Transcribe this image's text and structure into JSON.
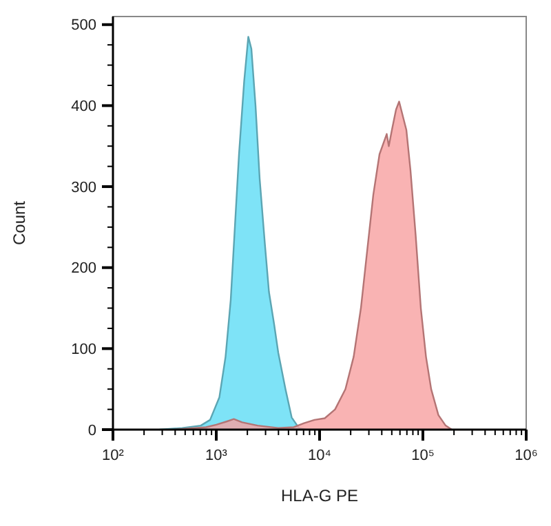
{
  "chart_data": {
    "type": "area",
    "xlabel": "HLA-G PE",
    "ylabel": "Count",
    "log": "x",
    "grid": false,
    "xlim": [
      100,
      1000000
    ],
    "xticks": [
      {
        "value": 100,
        "label": "10²"
      },
      {
        "value": 200,
        "label": null
      },
      {
        "value": 300,
        "label": null
      },
      {
        "value": 400,
        "label": null
      },
      {
        "value": 500,
        "label": null
      },
      {
        "value": 600,
        "label": null
      },
      {
        "value": 700,
        "label": null
      },
      {
        "value": 800,
        "label": null
      },
      {
        "value": 900,
        "label": null
      },
      {
        "value": 1000,
        "label": "10³"
      },
      {
        "value": 2000,
        "label": null
      },
      {
        "value": 3000,
        "label": null
      },
      {
        "value": 4000,
        "label": null
      },
      {
        "value": 5000,
        "label": null
      },
      {
        "value": 6000,
        "label": null
      },
      {
        "value": 7000,
        "label": null
      },
      {
        "value": 8000,
        "label": null
      },
      {
        "value": 9000,
        "label": null
      },
      {
        "value": 10000,
        "label": "10⁴"
      },
      {
        "value": 20000,
        "label": null
      },
      {
        "value": 30000,
        "label": null
      },
      {
        "value": 40000,
        "label": null
      },
      {
        "value": 50000,
        "label": null
      },
      {
        "value": 60000,
        "label": null
      },
      {
        "value": 70000,
        "label": null
      },
      {
        "value": 80000,
        "label": null
      },
      {
        "value": 90000,
        "label": null
      },
      {
        "value": 100000,
        "label": "10⁵"
      },
      {
        "value": 200000,
        "label": null
      },
      {
        "value": 300000,
        "label": null
      },
      {
        "value": 400000,
        "label": null
      },
      {
        "value": 500000,
        "label": null
      },
      {
        "value": 600000,
        "label": null
      },
      {
        "value": 700000,
        "label": null
      },
      {
        "value": 800000,
        "label": null
      },
      {
        "value": 900000,
        "label": null
      },
      {
        "value": 1000000,
        "label": "10⁶"
      }
    ],
    "ylim": [
      0,
      510
    ],
    "yticks": [
      0,
      {
        "value": 25,
        "label": null
      },
      {
        "value": 50,
        "label": null
      },
      {
        "value": 75,
        "label": null
      },
      100,
      {
        "value": 125,
        "label": null
      },
      {
        "value": 150,
        "label": null
      },
      {
        "value": 175,
        "label": null
      },
      200,
      {
        "value": 225,
        "label": null
      },
      {
        "value": 250,
        "label": null
      },
      {
        "value": 275,
        "label": null
      },
      300,
      {
        "value": 325,
        "label": null
      },
      {
        "value": 350,
        "label": null
      },
      {
        "value": 375,
        "label": null
      },
      400,
      {
        "value": 425,
        "label": null
      },
      {
        "value": 450,
        "label": null
      },
      {
        "value": 475,
        "label": null
      },
      500
    ],
    "series": [
      {
        "color": "#7ee3f7",
        "x": [
          282,
          468,
          708,
          871,
          1072,
          1230,
          1380,
          1514,
          1660,
          1862,
          2042,
          2188,
          2399,
          2630,
          2951,
          3236,
          3631,
          3981,
          4677,
          5370,
          6310,
          7413
        ],
        "values": [
          0,
          2,
          5,
          12,
          40,
          90,
          160,
          250,
          340,
          430,
          485,
          470,
          400,
          310,
          230,
          170,
          130,
          95,
          50,
          15,
          2,
          0
        ]
      },
      {
        "color": "#f8a0a0",
        "x": [
          398,
          794,
          1000,
          1259,
          1479,
          1778,
          2512,
          3981,
          5623,
          7079,
          8913,
          11220,
          14125,
          17783,
          21380,
          25119,
          28840,
          33113,
          38019,
          44668,
          46774,
          50119,
          54954,
          58884,
          63096,
          69183,
          75858,
          85114,
          95499,
          107152,
          120226,
          141254,
          165959,
          190546
        ],
        "values": [
          0,
          3,
          6,
          10,
          13,
          9,
          5,
          2,
          3,
          8,
          12,
          14,
          25,
          50,
          90,
          150,
          220,
          290,
          340,
          365,
          350,
          370,
          395,
          405,
          390,
          370,
          320,
          240,
          150,
          90,
          50,
          18,
          5,
          0
        ]
      }
    ]
  }
}
